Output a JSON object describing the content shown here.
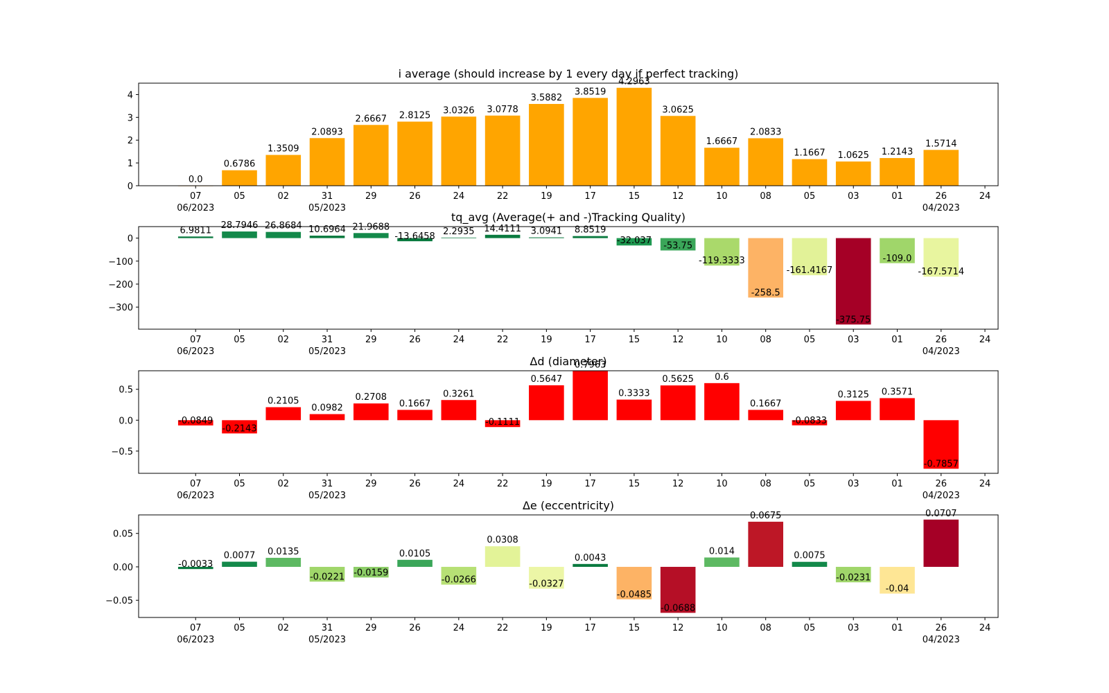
{
  "chart_data": [
    {
      "type": "bar",
      "title": "i average (should increase by 1 every day if perfect tracking)",
      "xlabel": "",
      "ylabel": "",
      "categories": [
        "2023-06-07",
        "2023-06-05",
        "2023-06-02",
        "2023-05-31",
        "2023-05-29",
        "2023-05-26",
        "2023-05-24",
        "2023-05-22",
        "2023-05-19",
        "2023-05-17",
        "2023-05-15",
        "2023-05-12",
        "2023-05-10",
        "2023-05-08",
        "2023-05-05",
        "2023-05-03",
        "2023-05-01",
        "2023-04-26"
      ],
      "values": [
        0.0,
        0.6786,
        1.3509,
        2.0893,
        2.6667,
        2.8125,
        3.0326,
        3.0778,
        3.5882,
        3.8519,
        4.2963,
        3.0625,
        1.6667,
        2.0833,
        1.1667,
        1.0625,
        1.2143,
        1.5714
      ],
      "labels": [
        "0.0",
        "0.6786",
        "1.3509",
        "2.0893",
        "2.6667",
        "2.8125",
        "3.0326",
        "3.0778",
        "3.5882",
        "3.8519",
        "4.2963",
        "3.0625",
        "1.6667",
        "2.0833",
        "1.1667",
        "1.0625",
        "1.2143",
        "1.5714"
      ],
      "colors": [
        "#ffa500",
        "#ffa500",
        "#ffa500",
        "#ffa500",
        "#ffa500",
        "#ffa500",
        "#ffa500",
        "#ffa500",
        "#ffa500",
        "#ffa500",
        "#ffa500",
        "#ffa500",
        "#ffa500",
        "#ffa500",
        "#ffa500",
        "#ffa500",
        "#ffa500",
        "#ffa500"
      ],
      "ylim": [
        0,
        4.5
      ],
      "yticks": [
        0,
        1,
        2,
        3,
        4
      ],
      "ytick_labels": [
        "0",
        "1",
        "2",
        "3",
        "4"
      ],
      "grid": false
    },
    {
      "type": "bar",
      "title": "tq_avg (Average(+ and -)Tracking Quality)",
      "xlabel": "",
      "ylabel": "",
      "categories": [
        "2023-06-07",
        "2023-06-05",
        "2023-06-02",
        "2023-05-31",
        "2023-05-29",
        "2023-05-26",
        "2023-05-24",
        "2023-05-22",
        "2023-05-19",
        "2023-05-17",
        "2023-05-15",
        "2023-05-12",
        "2023-05-10",
        "2023-05-08",
        "2023-05-05",
        "2023-05-03",
        "2023-05-01",
        "2023-04-26"
      ],
      "values": [
        6.9811,
        28.7946,
        26.8684,
        10.6964,
        21.9688,
        -13.6458,
        2.2935,
        14.4111,
        3.0941,
        8.8519,
        -32.037,
        -53.75,
        -119.3333,
        -258.5,
        -161.4167,
        -375.75,
        -109.0,
        -167.5714
      ],
      "labels": [
        "6.9811",
        "28.7946",
        "26.8684",
        "10.6964",
        "21.9688",
        "-13.6458",
        "2.2935",
        "14.4111",
        "3.0941",
        "8.8519",
        "-32.037",
        "-53.75",
        "-119.3333",
        "-258.5",
        "-161.4167",
        "-375.75",
        "-109.0",
        "-167.5714"
      ],
      "colors": [
        "#0a7a3f",
        "#13894a",
        "#13894a",
        "#0a7a3f",
        "#13894a",
        "#0a7a3f",
        "#0a7a3f",
        "#0a7a3f",
        "#0a7a3f",
        "#0a7a3f",
        "#1e9850",
        "#3aa659",
        "#aad96b",
        "#fdb365",
        "#e2f298",
        "#a50026",
        "#a0d66a",
        "#e8f59f"
      ],
      "ylim": [
        -396,
        50
      ],
      "yticks": [
        0,
        -100,
        -200,
        -300
      ],
      "ytick_labels": [
        "0",
        "−100",
        "−200",
        "−300"
      ],
      "grid": false
    },
    {
      "type": "bar",
      "title": "Δd (diameter)",
      "xlabel": "",
      "ylabel": "",
      "categories": [
        "2023-06-07",
        "2023-06-05",
        "2023-06-02",
        "2023-05-31",
        "2023-05-29",
        "2023-05-26",
        "2023-05-24",
        "2023-05-22",
        "2023-05-19",
        "2023-05-17",
        "2023-05-15",
        "2023-05-12",
        "2023-05-10",
        "2023-05-08",
        "2023-05-05",
        "2023-05-03",
        "2023-05-01",
        "2023-04-26"
      ],
      "values": [
        -0.0849,
        -0.2143,
        0.2105,
        0.0982,
        0.2708,
        0.1667,
        0.3261,
        -0.1111,
        0.5647,
        0.7963,
        0.3333,
        0.5625,
        0.6,
        0.1667,
        -0.0833,
        0.3125,
        0.3571,
        -0.7857
      ],
      "labels": [
        "-0.0849",
        "-0.2143",
        "0.2105",
        "0.0982",
        "0.2708",
        "0.1667",
        "0.3261",
        "-0.1111",
        "0.5647",
        "0.7963",
        "0.3333",
        "0.5625",
        "0.6",
        "0.1667",
        "-0.0833",
        "0.3125",
        "0.3571",
        "-0.7857"
      ],
      "colors": [
        "#ff0000",
        "#ff0000",
        "#ff0000",
        "#ff0000",
        "#ff0000",
        "#ff0000",
        "#ff0000",
        "#ff0000",
        "#ff0000",
        "#ff0000",
        "#ff0000",
        "#ff0000",
        "#ff0000",
        "#ff0000",
        "#ff0000",
        "#ff0000",
        "#ff0000",
        "#ff0000"
      ],
      "ylim": [
        -0.86,
        0.8
      ],
      "yticks": [
        0.5,
        0.0,
        -0.5
      ],
      "ytick_labels": [
        "0.5",
        "0.0",
        "−0.5"
      ],
      "grid": false
    },
    {
      "type": "bar",
      "title": "Δe (eccentricity)",
      "xlabel": "",
      "ylabel": "",
      "categories": [
        "2023-06-07",
        "2023-06-05",
        "2023-06-02",
        "2023-05-31",
        "2023-05-29",
        "2023-05-26",
        "2023-05-24",
        "2023-05-22",
        "2023-05-19",
        "2023-05-17",
        "2023-05-15",
        "2023-05-12",
        "2023-05-10",
        "2023-05-08",
        "2023-05-05",
        "2023-05-03",
        "2023-05-01",
        "2023-04-26"
      ],
      "values": [
        -0.0033,
        0.0077,
        0.0135,
        -0.0221,
        -0.0159,
        0.0105,
        -0.0266,
        0.0308,
        -0.0327,
        0.0043,
        -0.0485,
        -0.0688,
        0.014,
        0.0675,
        0.0075,
        -0.0231,
        -0.04,
        0.0707
      ],
      "labels": [
        "-0.0033",
        "0.0077",
        "0.0135",
        "-0.0221",
        "-0.0159",
        "0.0105",
        "-0.0266",
        "0.0308",
        "-0.0327",
        "0.0043",
        "-0.0485",
        "-0.0688",
        "0.014",
        "0.0675",
        "0.0075",
        "-0.0231",
        "-0.04",
        "0.0707"
      ],
      "colors": [
        "#0a7a3f",
        "#13894a",
        "#5db962",
        "#a0d66a",
        "#8ccd67",
        "#3aa659",
        "#b7e075",
        "#e3f398",
        "#ecf6a6",
        "#0a7a3f",
        "#fdb365",
        "#b50f26",
        "#5db962",
        "#bd1726",
        "#13894a",
        "#a0d66a",
        "#fee695",
        "#a50026"
      ],
      "ylim": [
        -0.0757,
        0.0777
      ],
      "yticks": [
        0.05,
        0.0,
        -0.05
      ],
      "ytick_labels": [
        "0.05",
        "0.00",
        "−0.05"
      ],
      "grid": false
    }
  ],
  "x_axis": {
    "ticks": [
      {
        "pos": 0,
        "label": "07",
        "sub": "06/2023"
      },
      {
        "pos": 1,
        "label": "05",
        "sub": ""
      },
      {
        "pos": 2,
        "label": "02",
        "sub": ""
      },
      {
        "pos": 3,
        "label": "31",
        "sub": "05/2023"
      },
      {
        "pos": 4,
        "label": "29",
        "sub": ""
      },
      {
        "pos": 5,
        "label": "26",
        "sub": ""
      },
      {
        "pos": 6,
        "label": "24",
        "sub": ""
      },
      {
        "pos": 7,
        "label": "22",
        "sub": ""
      },
      {
        "pos": 8,
        "label": "19",
        "sub": ""
      },
      {
        "pos": 9,
        "label": "17",
        "sub": ""
      },
      {
        "pos": 10,
        "label": "15",
        "sub": ""
      },
      {
        "pos": 11,
        "label": "12",
        "sub": ""
      },
      {
        "pos": 12,
        "label": "10",
        "sub": ""
      },
      {
        "pos": 13,
        "label": "08",
        "sub": ""
      },
      {
        "pos": 14,
        "label": "05",
        "sub": ""
      },
      {
        "pos": 15,
        "label": "03",
        "sub": ""
      },
      {
        "pos": 16,
        "label": "01",
        "sub": ""
      },
      {
        "pos": 17,
        "label": "26",
        "sub": "04/2023"
      },
      {
        "pos": 18,
        "label": "24",
        "sub": ""
      }
    ],
    "range": [
      -1.3,
      18.3
    ]
  }
}
